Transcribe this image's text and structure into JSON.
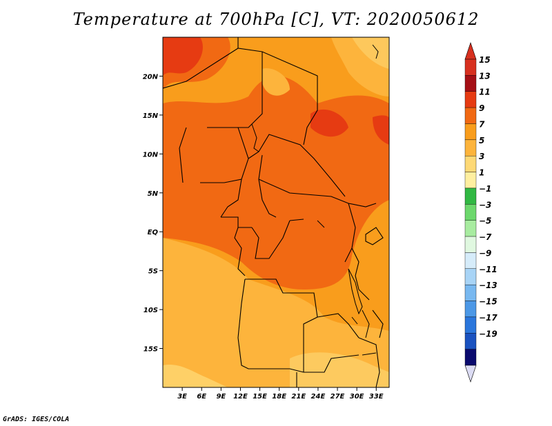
{
  "title": "Temperature at 700hPa [C], VT: 2020050612",
  "credit": "GrADS: IGES/COLA",
  "map": {
    "lon_range": [
      0,
      35
    ],
    "lat_range": [
      -20,
      25
    ],
    "lon_ticks": [
      {
        "value": 3,
        "label": "3E"
      },
      {
        "value": 6,
        "label": "6E"
      },
      {
        "value": 9,
        "label": "9E"
      },
      {
        "value": 12,
        "label": "12E"
      },
      {
        "value": 15,
        "label": "15E"
      },
      {
        "value": 18,
        "label": "18E"
      },
      {
        "value": 21,
        "label": "21E"
      },
      {
        "value": 24,
        "label": "24E"
      },
      {
        "value": 27,
        "label": "27E"
      },
      {
        "value": 30,
        "label": "30E"
      },
      {
        "value": 33,
        "label": "33E"
      }
    ],
    "lat_ticks": [
      {
        "value": 20,
        "label": "20N"
      },
      {
        "value": 15,
        "label": "15N"
      },
      {
        "value": 10,
        "label": "10N"
      },
      {
        "value": 5,
        "label": "5N"
      },
      {
        "value": 0,
        "label": "EQ"
      },
      {
        "value": -5,
        "label": "5S"
      },
      {
        "value": -10,
        "label": "10S"
      },
      {
        "value": -15,
        "label": "15S"
      }
    ]
  },
  "colorbar": {
    "levels": [
      {
        "label": "15",
        "color": "#a50f15"
      },
      {
        "label": "13",
        "color": "#e63b12"
      },
      {
        "label": "11",
        "color": "#f16913"
      },
      {
        "label": "9",
        "color": "#f99d1c"
      },
      {
        "label": "7",
        "color": "#fdb43c"
      },
      {
        "label": "5",
        "color": "#fed976"
      },
      {
        "label": "3",
        "color": "#ffefa0"
      },
      {
        "label": "1",
        "color": "#31b843"
      },
      {
        "label": "−1",
        "color": "#6cd86c"
      },
      {
        "label": "−3",
        "color": "#a8eca0"
      },
      {
        "label": "−5",
        "color": "#e0f8e0"
      },
      {
        "label": "−7",
        "color": "#d6ecfa"
      },
      {
        "label": "−9",
        "color": "#a8d4f6"
      },
      {
        "label": "−11",
        "color": "#78b8f0"
      },
      {
        "label": "−13",
        "color": "#4c98e6"
      },
      {
        "label": "−15",
        "color": "#2a76dc"
      },
      {
        "label": "−17",
        "color": "#1a52c0"
      },
      {
        "label": "−19",
        "color": "#0a2c8c"
      }
    ],
    "top_color": "#d7301f",
    "bottom_color": "#dcdcf4",
    "low_bar_color": "#0a0a6e"
  }
}
